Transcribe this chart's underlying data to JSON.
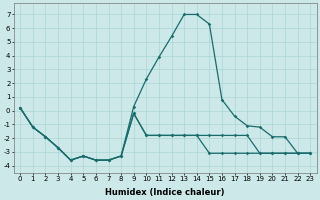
{
  "xlabel": "Humidex (Indice chaleur)",
  "background_color": "#cce8e8",
  "grid_color": "#aad4d4",
  "line_color": "#1a6b6b",
  "xlim": [
    -0.5,
    23.5
  ],
  "ylim": [
    -4.5,
    7.8
  ],
  "yticks": [
    -4,
    -3,
    -2,
    -1,
    0,
    1,
    2,
    3,
    4,
    5,
    6,
    7
  ],
  "xticks": [
    0,
    1,
    2,
    3,
    4,
    5,
    6,
    7,
    8,
    9,
    10,
    11,
    12,
    13,
    14,
    15,
    16,
    17,
    18,
    19,
    20,
    21,
    22,
    23
  ],
  "line1_x": [
    0,
    1,
    2,
    3,
    4,
    5,
    6,
    7,
    8,
    9,
    10,
    11,
    12,
    13,
    14,
    15,
    16,
    17,
    18,
    19,
    20,
    21,
    22,
    23
  ],
  "line1_y": [
    0.2,
    -1.2,
    -1.9,
    -2.7,
    -3.6,
    -3.3,
    -3.6,
    -3.6,
    -3.3,
    0.3,
    2.3,
    3.9,
    5.4,
    7.0,
    7.0,
    6.3,
    0.8,
    -0.4,
    -1.1,
    -1.2,
    -1.9,
    -1.9,
    -3.1,
    -3.1
  ],
  "line2_x": [
    0,
    1,
    2,
    3,
    4,
    5,
    6,
    7,
    8,
    9,
    10,
    11,
    12,
    13,
    14,
    15,
    16,
    17,
    18,
    19,
    20,
    21,
    22,
    23
  ],
  "line2_y": [
    0.2,
    -1.2,
    -1.9,
    -2.7,
    -3.6,
    -3.3,
    -3.6,
    -3.6,
    -3.3,
    -0.2,
    -1.8,
    -1.8,
    -1.8,
    -1.8,
    -1.8,
    -1.8,
    -1.8,
    -1.8,
    -1.8,
    -3.1,
    -3.1,
    -3.1,
    -3.1,
    -3.1
  ],
  "line3_x": [
    0,
    1,
    2,
    3,
    4,
    5,
    6,
    7,
    8,
    9,
    10,
    11,
    12,
    13,
    14,
    15,
    16,
    17,
    18,
    19,
    20,
    21,
    22,
    23
  ],
  "line3_y": [
    0.2,
    -1.2,
    -1.9,
    -2.7,
    -3.6,
    -3.3,
    -3.6,
    -3.6,
    -3.3,
    -0.2,
    -1.8,
    -1.8,
    -1.8,
    -1.8,
    -1.8,
    -3.1,
    -3.1,
    -3.1,
    -3.1,
    -3.1,
    -3.1,
    -3.1,
    -3.1,
    -3.1
  ],
  "markersize": 1.8,
  "linewidth": 0.9,
  "tick_fontsize": 5.0,
  "xlabel_fontsize": 6.0
}
